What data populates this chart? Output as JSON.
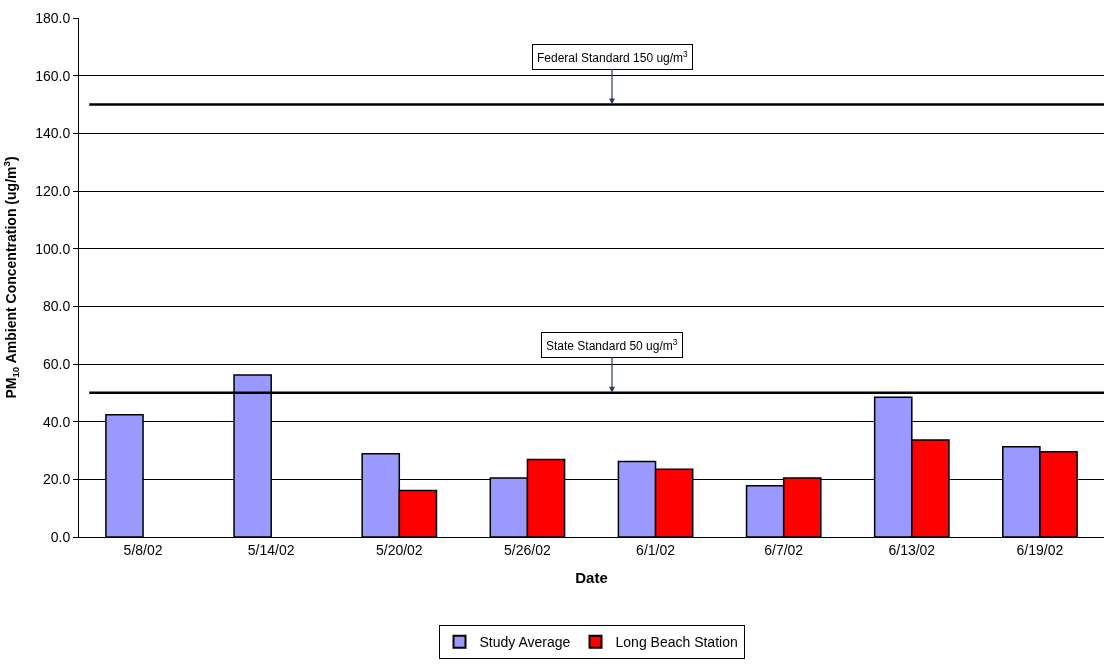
{
  "chart_data": {
    "type": "bar",
    "xlabel": "Date",
    "ylabel": "PM$_{10}$ Ambient Concentration (ug/m$^{3}$)",
    "categories": [
      "5/8/02",
      "5/14/02",
      "5/20/02",
      "5/26/02",
      "6/1/02",
      "6/7/02",
      "6/13/02",
      "6/19/02"
    ],
    "series": [
      {
        "name": "Study Average",
        "color": "#9999ff",
        "values": [
          42.4,
          56.2,
          28.9,
          20.5,
          26.2,
          17.8,
          48.5,
          31.3
        ]
      },
      {
        "name": "Long Beach Station",
        "color": "#ff0000",
        "values": [
          null,
          null,
          16.1,
          26.9,
          23.5,
          20.5,
          33.6,
          29.6
        ]
      }
    ],
    "ylim": [
      0,
      180
    ],
    "yticks": [
      {
        "value": 0,
        "label": "0.0"
      },
      {
        "value": 20,
        "label": "20.0"
      },
      {
        "value": 40,
        "label": "40.0"
      },
      {
        "value": 60,
        "label": "60.0"
      },
      {
        "value": 80,
        "label": "80.0"
      },
      {
        "value": 100,
        "label": "100.0"
      },
      {
        "value": 120,
        "label": "120.0"
      },
      {
        "value": 140,
        "label": "140.0"
      },
      {
        "value": 160,
        "label": "160.0"
      },
      {
        "value": 180,
        "label": "180.0"
      }
    ],
    "ref_lines": [
      {
        "axis": "y",
        "value": 150,
        "label": "Federal Standard 150 ug/m$^{3}$",
        "color": "#000000"
      },
      {
        "axis": "y",
        "value": 50,
        "label": "State Standard 50 ug/m$^{3}$",
        "color": "#000000"
      }
    ],
    "grid": "y",
    "legend": "bottom"
  }
}
